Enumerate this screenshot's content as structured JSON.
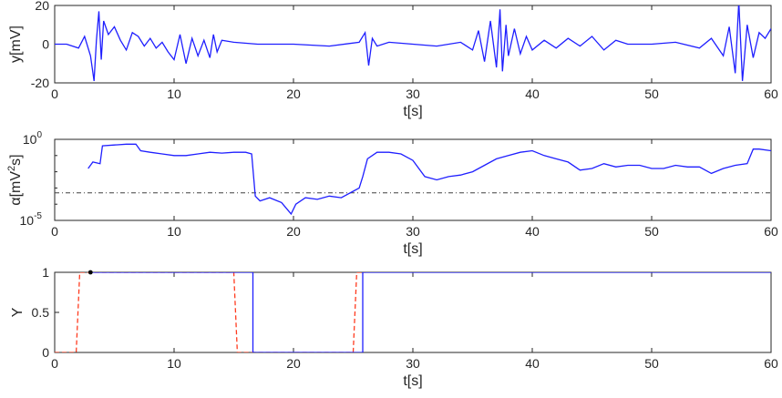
{
  "colors": {
    "main_series": "#1f1fff",
    "red_series": "#ff3b1f",
    "threshold": "#404040",
    "axis": "#262626"
  },
  "chart_data": [
    {
      "type": "line",
      "xlabel": "t[s]",
      "ylabel": "y[mV]",
      "xlim": [
        0,
        60
      ],
      "ylim": [
        -20,
        20
      ],
      "xticks": [
        "0",
        "10",
        "20",
        "30",
        "40",
        "50",
        "60"
      ],
      "yticks": [
        "-20",
        "0",
        "20"
      ],
      "grid": false,
      "series": [
        {
          "x": [
            0,
            1,
            2,
            2.5,
            3,
            3.3,
            3.5,
            3.7,
            3.9,
            4.1,
            4.5,
            5,
            5.5,
            6,
            6.5,
            7,
            7.5,
            8,
            8.5,
            9,
            9.5,
            10,
            10.5,
            11,
            11.5,
            12,
            12.5,
            13,
            13.3,
            13.6,
            14,
            15,
            17,
            20,
            23,
            25.5,
            26,
            26.3,
            26.6,
            27,
            28,
            30,
            32,
            34,
            35,
            35.5,
            36,
            36.5,
            37,
            37.3,
            37.5,
            37.8,
            38,
            38.5,
            39,
            39.5,
            40,
            41,
            42,
            43,
            44,
            45,
            46,
            47,
            48,
            50,
            52,
            54,
            55,
            56,
            56.5,
            57,
            57.3,
            57.6,
            58,
            58.5,
            59,
            59.5,
            60
          ],
          "values": [
            0,
            0,
            -2,
            4,
            -6,
            -19,
            2,
            17,
            -8,
            12,
            5,
            9,
            2,
            -3,
            6,
            4,
            -1,
            3,
            -2,
            1,
            -4,
            -8,
            5,
            -10,
            3,
            -6,
            2,
            -7,
            5,
            -4,
            2,
            1,
            0,
            0,
            -1,
            1,
            6,
            -11,
            3,
            -1,
            1,
            0,
            -1,
            1,
            -3,
            7,
            -9,
            12,
            -12,
            18,
            -14,
            10,
            -6,
            8,
            -5,
            4,
            -3,
            2,
            -2,
            3,
            -1,
            4,
            -3,
            2,
            0,
            0,
            1,
            -2,
            3,
            -6,
            9,
            -15,
            22,
            -19,
            10,
            -7,
            6,
            3,
            8
          ]
        }
      ]
    },
    {
      "type": "line",
      "xlabel": "t[s]",
      "ylabel": "α[mV²s]",
      "ylabel_base": "α[mV",
      "ylabel_sup": "2",
      "ylabel_end": "s]",
      "xlim": [
        0,
        60
      ],
      "ylim_log10": [
        -5,
        0
      ],
      "scale_y": "log",
      "xticks": [
        "0",
        "10",
        "20",
        "30",
        "40",
        "50",
        "60"
      ],
      "yticks": [
        {
          "base": "10",
          "exp": "0"
        },
        {
          "base": "10",
          "exp": "-5"
        }
      ],
      "threshold": -3.3,
      "grid": false,
      "series": [
        {
          "x": [
            2.8,
            3.2,
            3.8,
            4.0,
            5.0,
            6.0,
            6.8,
            7.2,
            8.0,
            9.0,
            10.0,
            11.0,
            12.0,
            13.0,
            14.0,
            15.0,
            16.0,
            16.5,
            16.8,
            17.2,
            18.0,
            19.0,
            19.8,
            20.2,
            21.0,
            22.0,
            23.0,
            24.0,
            25.0,
            25.5,
            25.8,
            26.2,
            27.0,
            28.0,
            29.0,
            30.0,
            31.0,
            32.0,
            33.0,
            34.0,
            35.0,
            36.0,
            37.0,
            38.0,
            39.0,
            40.0,
            41.0,
            42.0,
            43.0,
            44.0,
            45.0,
            46.0,
            47.0,
            48.0,
            49.0,
            50.0,
            51.0,
            52.0,
            53.0,
            54.0,
            55.0,
            56.0,
            57.0,
            58.0,
            58.5,
            59.0,
            60.0
          ],
          "values": [
            -1.8,
            -1.4,
            -1.5,
            -0.4,
            -0.35,
            -0.3,
            -0.3,
            -0.7,
            -0.8,
            -0.9,
            -1.0,
            -1.0,
            -0.9,
            -0.8,
            -0.85,
            -0.8,
            -0.8,
            -0.9,
            -3.5,
            -3.8,
            -3.6,
            -3.9,
            -4.6,
            -4.0,
            -3.6,
            -3.7,
            -3.5,
            -3.6,
            -3.2,
            -3.0,
            -2.3,
            -1.2,
            -0.8,
            -0.8,
            -0.9,
            -1.3,
            -2.3,
            -2.5,
            -2.3,
            -2.2,
            -2.0,
            -1.6,
            -1.2,
            -1.0,
            -0.8,
            -0.7,
            -1.0,
            -1.2,
            -1.4,
            -1.9,
            -1.8,
            -1.5,
            -1.7,
            -1.6,
            -1.6,
            -1.8,
            -1.8,
            -1.6,
            -1.7,
            -1.7,
            -2.1,
            -1.8,
            -1.6,
            -1.5,
            -0.6,
            -0.6,
            -0.7
          ]
        }
      ]
    },
    {
      "type": "line",
      "xlabel": "t[s]",
      "ylabel": "Y",
      "xlim": [
        0,
        60
      ],
      "ylim": [
        0,
        1
      ],
      "xticks": [
        "0",
        "10",
        "20",
        "30",
        "40",
        "50",
        "60"
      ],
      "yticks": [
        "0",
        "0.5",
        "1"
      ],
      "grid": false,
      "series": [
        {
          "style": "solid",
          "x": [
            3.0,
            16.6,
            16.6,
            25.8,
            25.8,
            60
          ],
          "values": [
            1,
            1,
            0,
            0,
            1,
            1
          ]
        },
        {
          "style": "dashed",
          "x": [
            0,
            1.8,
            2.1,
            15.0,
            15.3,
            25.0,
            25.3,
            26.0
          ],
          "values": [
            0,
            0,
            1,
            1,
            0,
            0,
            1,
            1
          ]
        }
      ],
      "marker": {
        "x": 3.0,
        "y": 1
      }
    }
  ]
}
